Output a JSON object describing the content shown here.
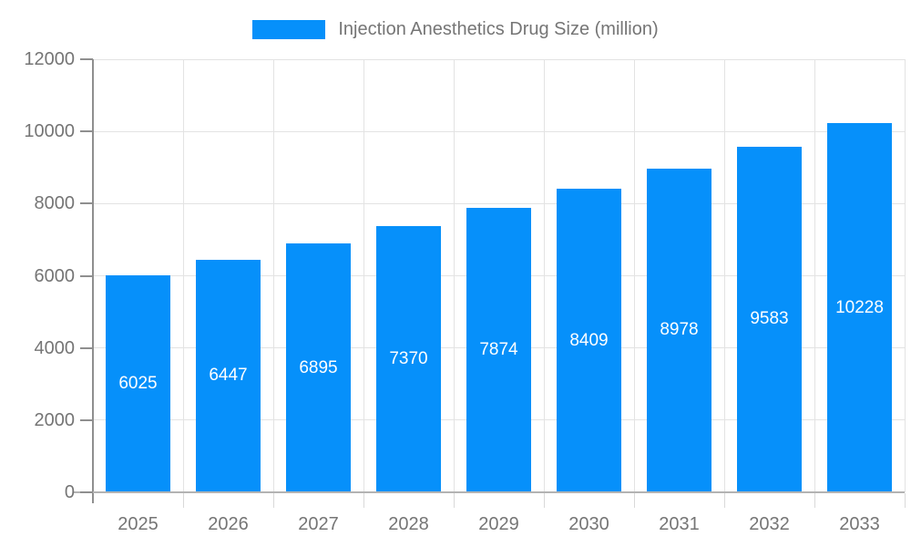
{
  "legend": {
    "label": "Injection Anesthetics Drug Size (million)"
  },
  "chart_data": {
    "type": "bar",
    "title": "Injection Anesthetics Drug Size (million)",
    "series_name": "Injection Anesthetics Drug Size (million)",
    "categories": [
      "2025",
      "2026",
      "2027",
      "2028",
      "2029",
      "2030",
      "2031",
      "2032",
      "2033"
    ],
    "values": [
      6025,
      6447,
      6895,
      7370,
      7874,
      8409,
      8978,
      9583,
      10228
    ],
    "data_labels": [
      "6025",
      "6447",
      "6895",
      "7370",
      "7874",
      "8409",
      "8978",
      "9583",
      "10228"
    ],
    "xlabel": "",
    "ylabel": "",
    "ylim": [
      0,
      12000
    ],
    "yticks": [
      0,
      2000,
      4000,
      6000,
      8000,
      10000,
      12000
    ],
    "ytick_labels": [
      "0",
      "2000",
      "4000",
      "6000",
      "8000",
      "10000",
      "12000"
    ],
    "grid": true,
    "legend_position": "top",
    "colors": {
      "bar": "#0690FA",
      "bar_value_label": "#FFFFFF",
      "axis_text": "#757575",
      "gridline": "#E3E3E3",
      "y_axis_line": "#8F8F8F",
      "baseline": "#B3B3B3",
      "x_tick": "#D9D9D9"
    }
  }
}
